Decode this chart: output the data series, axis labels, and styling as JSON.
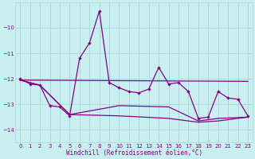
{
  "xlabel": "Windchill (Refroidissement éolien,°C)",
  "bg_color": "#c8f0f0",
  "grid_color": "#b0d8d8",
  "line_color": "#880088",
  "xlim": [
    -0.5,
    23.5
  ],
  "ylim": [
    -14.5,
    -9.0
  ],
  "yticks": [
    -14,
    -13,
    -12,
    -11,
    -10
  ],
  "xticks": [
    0,
    1,
    2,
    3,
    4,
    5,
    6,
    7,
    8,
    9,
    10,
    11,
    12,
    13,
    14,
    15,
    16,
    17,
    18,
    19,
    20,
    21,
    22,
    23
  ],
  "series_marked": [
    [
      0,
      -12.0
    ],
    [
      1,
      -12.2
    ],
    [
      2,
      -12.25
    ],
    [
      3,
      -13.05
    ],
    [
      4,
      -13.1
    ],
    [
      5,
      -13.45
    ],
    [
      6,
      -11.2
    ],
    [
      7,
      -10.6
    ],
    [
      8,
      -9.35
    ],
    [
      9,
      -12.15
    ],
    [
      10,
      -12.35
    ],
    [
      11,
      -12.5
    ],
    [
      12,
      -12.55
    ],
    [
      13,
      -12.4
    ],
    [
      14,
      -11.55
    ],
    [
      15,
      -12.2
    ],
    [
      16,
      -12.15
    ],
    [
      17,
      -12.5
    ],
    [
      18,
      -13.55
    ],
    [
      19,
      -13.5
    ],
    [
      20,
      -12.5
    ],
    [
      21,
      -12.75
    ],
    [
      22,
      -12.8
    ],
    [
      23,
      -13.45
    ]
  ],
  "series_flat": [
    [
      0,
      -12.05
    ],
    [
      23,
      -12.1
    ]
  ],
  "series_diag1": [
    [
      0,
      -12.05
    ],
    [
      2,
      -12.25
    ],
    [
      5,
      -13.4
    ],
    [
      10,
      -13.45
    ],
    [
      15,
      -13.55
    ],
    [
      18,
      -13.7
    ],
    [
      20,
      -13.65
    ],
    [
      23,
      -13.5
    ]
  ],
  "series_diag2": [
    [
      0,
      -12.05
    ],
    [
      2,
      -12.25
    ],
    [
      5,
      -13.4
    ],
    [
      10,
      -13.05
    ],
    [
      15,
      -13.1
    ],
    [
      18,
      -13.65
    ],
    [
      20,
      -13.55
    ],
    [
      23,
      -13.5
    ]
  ]
}
